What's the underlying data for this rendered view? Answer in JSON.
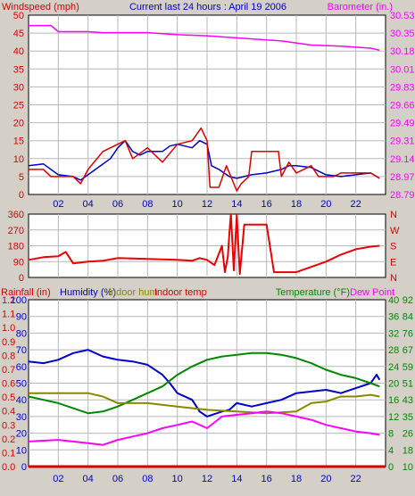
{
  "chart_data": [
    {
      "type": "line",
      "title": "Current last 24 hours : April 19 2006",
      "left_axis": {
        "label": "Windspeed (mph)",
        "ylim": [
          0,
          50
        ],
        "ticks": [
          "0",
          "5",
          "10",
          "15",
          "20",
          "25",
          "30",
          "35",
          "40",
          "45",
          "50"
        ]
      },
      "right_axis": {
        "label": "Barometer (in.)",
        "ylim": [
          28.79,
          30.53
        ],
        "ticks": [
          "28.79",
          "28.97",
          "29.14",
          "29.31",
          "29.49",
          "29.66",
          "29.83",
          "30.01",
          "30.18",
          "30.35",
          "30.53"
        ]
      },
      "xlim": [
        0,
        24
      ],
      "x_ticks": [
        "02",
        "04",
        "06",
        "08",
        "10",
        "12",
        "14",
        "16",
        "18",
        "20",
        "22"
      ],
      "grid": true,
      "series": [
        {
          "axis": "left",
          "color": "#0000cc",
          "points": [
            [
              0,
              8
            ],
            [
              1,
              8.5
            ],
            [
              2,
              5.5
            ],
            [
              3,
              5
            ],
            [
              3.5,
              4
            ],
            [
              4.5,
              7
            ],
            [
              5.5,
              10
            ],
            [
              6,
              13
            ],
            [
              6.5,
              15
            ],
            [
              7,
              12
            ],
            [
              7.5,
              11
            ],
            [
              8,
              12
            ],
            [
              9,
              12
            ],
            [
              9.5,
              13.5
            ],
            [
              10,
              14
            ],
            [
              11,
              13
            ],
            [
              11.5,
              15
            ],
            [
              12,
              14
            ],
            [
              12.3,
              8
            ],
            [
              12.8,
              7
            ],
            [
              13.5,
              5
            ],
            [
              14,
              4.5
            ],
            [
              15,
              5.5
            ],
            [
              16,
              6
            ],
            [
              17,
              7
            ],
            [
              17.5,
              8
            ],
            [
              18,
              8
            ],
            [
              19,
              7.5
            ],
            [
              19.5,
              6.5
            ],
            [
              20,
              5.5
            ],
            [
              21,
              5
            ],
            [
              22,
              5.5
            ],
            [
              23,
              6
            ],
            [
              23.6,
              4.5
            ]
          ]
        },
        {
          "axis": "left",
          "color": "#dd0000",
          "points": [
            [
              0,
              7
            ],
            [
              1,
              7
            ],
            [
              1.5,
              5
            ],
            [
              3,
              5
            ],
            [
              3.5,
              3
            ],
            [
              4,
              7
            ],
            [
              5,
              12
            ],
            [
              6,
              14
            ],
            [
              6.5,
              15
            ],
            [
              7,
              10
            ],
            [
              8,
              13
            ],
            [
              9,
              9
            ],
            [
              10,
              14
            ],
            [
              11,
              15
            ],
            [
              11.6,
              18.5
            ],
            [
              12,
              15
            ],
            [
              12.2,
              2
            ],
            [
              12.8,
              2
            ],
            [
              13.3,
              8
            ],
            [
              14,
              1
            ],
            [
              14.3,
              3
            ],
            [
              14.8,
              5
            ],
            [
              15,
              12
            ],
            [
              16.8,
              12
            ],
            [
              17,
              5
            ],
            [
              17.5,
              9
            ],
            [
              18,
              6
            ],
            [
              19,
              8
            ],
            [
              19.5,
              5
            ],
            [
              20.5,
              5
            ],
            [
              21,
              6
            ],
            [
              22,
              6
            ],
            [
              23,
              6
            ],
            [
              23.6,
              4.5
            ]
          ]
        },
        {
          "axis": "right",
          "color": "#ff00ff",
          "points": [
            [
              0,
              30.43
            ],
            [
              1.5,
              30.43
            ],
            [
              2,
              30.37
            ],
            [
              4,
              30.37
            ],
            [
              5,
              30.36
            ],
            [
              8,
              30.36
            ],
            [
              10,
              30.34
            ],
            [
              12,
              30.33
            ],
            [
              15,
              30.3
            ],
            [
              17,
              30.28
            ],
            [
              19,
              30.24
            ],
            [
              21,
              30.23
            ],
            [
              23,
              30.21
            ],
            [
              23.6,
              30.19
            ]
          ]
        }
      ]
    },
    {
      "type": "line",
      "left_axis": {
        "ylim": [
          0,
          360
        ],
        "ticks": [
          "0",
          "90",
          "180",
          "270",
          "360"
        ]
      },
      "right_axis": {
        "ticks": [
          "N",
          "E",
          "S",
          "W",
          "N"
        ]
      },
      "xlim": [
        0,
        24
      ],
      "grid": true,
      "series": [
        {
          "axis": "left",
          "color": "#ee0000",
          "points": [
            [
              0,
              100
            ],
            [
              1,
              115
            ],
            [
              2,
              120
            ],
            [
              2.5,
              145
            ],
            [
              3,
              80
            ],
            [
              4,
              90
            ],
            [
              5,
              95
            ],
            [
              6,
              110
            ],
            [
              8,
              105
            ],
            [
              10,
              100
            ],
            [
              11,
              95
            ],
            [
              11.5,
              110
            ],
            [
              12,
              100
            ],
            [
              12.5,
              70
            ],
            [
              13,
              180
            ],
            [
              13.2,
              30
            ],
            [
              13.4,
              120
            ],
            [
              13.5,
              250
            ],
            [
              13.6,
              360
            ],
            [
              13.8,
              40
            ],
            [
              14,
              355
            ],
            [
              14.2,
              20
            ],
            [
              14.5,
              300
            ],
            [
              15,
              300
            ],
            [
              16,
              300
            ],
            [
              16.5,
              30
            ],
            [
              18,
              30
            ],
            [
              19,
              60
            ],
            [
              20,
              90
            ],
            [
              21,
              130
            ],
            [
              22,
              160
            ],
            [
              23,
              175
            ],
            [
              23.6,
              180
            ]
          ]
        }
      ]
    },
    {
      "type": "line",
      "legend": [
        "Rainfall (in)",
        "Humidity (%)",
        "Indoor hum",
        "Indoor temp",
        "Temperature (°F)",
        "Dew Point"
      ],
      "axes": {
        "rainfall": {
          "label": "Rainfall (in)",
          "ticks": [
            "0.0",
            "0.1",
            "0.2",
            "0.3",
            "0.4",
            "0.5",
            "0.6",
            "0.7",
            "0.8",
            "0.9",
            "1.0",
            "1.1",
            "1.2"
          ]
        },
        "humidity": {
          "label": "Humidity (%)",
          "ylim": [
            0,
            100
          ],
          "ticks": [
            "0",
            "10",
            "20",
            "30",
            "40",
            "50",
            "60",
            "70",
            "80",
            "90",
            "100"
          ]
        },
        "temp_c": {
          "ticks": [
            "0",
            "4",
            "8",
            "12",
            "16",
            "20",
            "24",
            "28",
            "32",
            "36",
            "40"
          ]
        },
        "temp_f": {
          "label": "Temperature (°F)",
          "ticks": [
            "10",
            "18",
            "26",
            "35",
            "43",
            "51",
            "59",
            "67",
            "76",
            "84",
            "92"
          ]
        }
      },
      "xlim": [
        0,
        24
      ],
      "grid": true,
      "series": [
        {
          "name": "Humidity (%)",
          "color": "#0000cc",
          "points": [
            [
              0,
              63
            ],
            [
              1,
              62
            ],
            [
              2,
              64
            ],
            [
              3,
              68
            ],
            [
              4,
              70
            ],
            [
              5,
              66
            ],
            [
              6,
              64
            ],
            [
              7,
              63
            ],
            [
              8,
              61
            ],
            [
              9,
              55
            ],
            [
              9.5,
              50
            ],
            [
              10,
              44
            ],
            [
              11,
              40
            ],
            [
              11.5,
              33
            ],
            [
              12,
              30
            ],
            [
              13,
              33
            ],
            [
              13.5,
              34
            ],
            [
              14,
              38
            ],
            [
              15,
              36
            ],
            [
              16,
              38
            ],
            [
              17,
              40
            ],
            [
              18,
              44
            ],
            [
              19,
              45
            ],
            [
              20,
              46
            ],
            [
              21,
              44
            ],
            [
              22,
              47
            ],
            [
              23,
              50
            ],
            [
              23.4,
              55
            ],
            [
              23.6,
              52
            ]
          ]
        },
        {
          "name": "Temperature (°F)",
          "color": "#008800",
          "points": [
            [
              0,
              42
            ],
            [
              1,
              40
            ],
            [
              2,
              38
            ],
            [
              3,
              35
            ],
            [
              4,
              32
            ],
            [
              5,
              33
            ],
            [
              6,
              36
            ],
            [
              7,
              40
            ],
            [
              8,
              44
            ],
            [
              9,
              48
            ],
            [
              10,
              55
            ],
            [
              11,
              60
            ],
            [
              12,
              64
            ],
            [
              13,
              66
            ],
            [
              14,
              67
            ],
            [
              15,
              68
            ],
            [
              16,
              68
            ],
            [
              17,
              67
            ],
            [
              18,
              65
            ],
            [
              19,
              62
            ],
            [
              20,
              58
            ],
            [
              21,
              55
            ],
            [
              22,
              53
            ],
            [
              23,
              50
            ],
            [
              23.6,
              48
            ]
          ]
        },
        {
          "name": "Indoor hum",
          "color": "#888800",
          "points": [
            [
              0,
              44
            ],
            [
              2,
              44
            ],
            [
              4,
              44
            ],
            [
              5,
              42
            ],
            [
              6,
              38
            ],
            [
              7,
              38
            ],
            [
              8,
              38
            ],
            [
              10,
              36
            ],
            [
              12,
              34
            ],
            [
              14,
              33
            ],
            [
              16,
              32
            ],
            [
              18,
              33
            ],
            [
              19,
              38
            ],
            [
              20,
              39
            ],
            [
              21,
              42
            ],
            [
              22,
              42
            ],
            [
              23,
              43
            ],
            [
              23.6,
              42
            ]
          ]
        },
        {
          "name": "Dew Point",
          "color": "#ff00ff",
          "points": [
            [
              0,
              15
            ],
            [
              2,
              16
            ],
            [
              4,
              14
            ],
            [
              5,
              13
            ],
            [
              6,
              16
            ],
            [
              7,
              18
            ],
            [
              8,
              20
            ],
            [
              9,
              23
            ],
            [
              10,
              25
            ],
            [
              11,
              27
            ],
            [
              12,
              23
            ],
            [
              13,
              30
            ],
            [
              14,
              31
            ],
            [
              15,
              32
            ],
            [
              16,
              33
            ],
            [
              17,
              32
            ],
            [
              18,
              30
            ],
            [
              19,
              28
            ],
            [
              20,
              25
            ],
            [
              21,
              23
            ],
            [
              22,
              21
            ],
            [
              23,
              20
            ],
            [
              23.6,
              19
            ]
          ]
        },
        {
          "name": "Rainfall (in)",
          "color": "#dd0000",
          "points": [
            [
              0,
              0
            ],
            [
              24,
              0
            ]
          ]
        }
      ]
    }
  ]
}
